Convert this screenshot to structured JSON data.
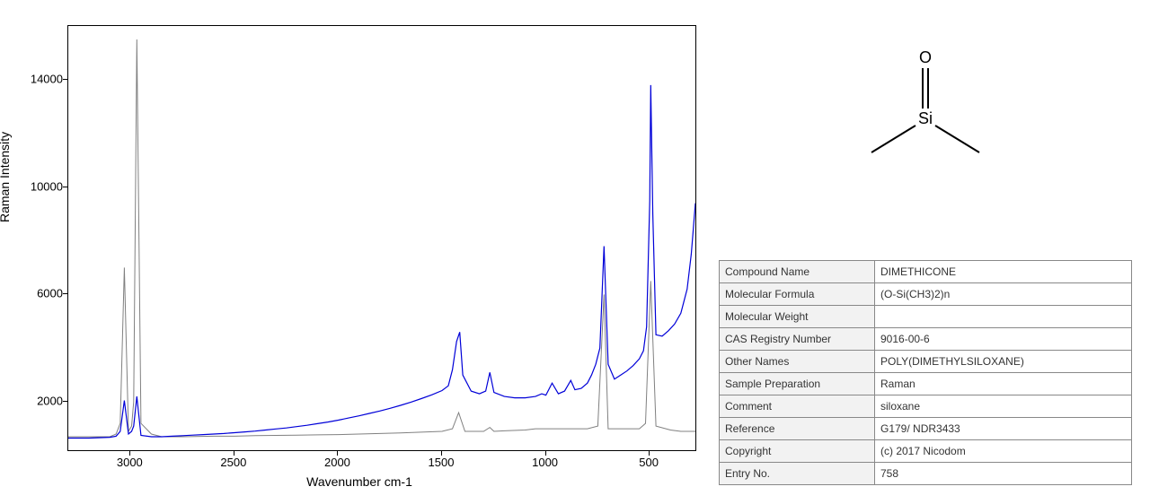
{
  "chart": {
    "type": "line-spectrum",
    "y_label": "Raman Intensity",
    "x_label": "Wavenumber cm-1",
    "x_range": [
      3300,
      280
    ],
    "y_range": [
      200,
      16000
    ],
    "x_ticks": [
      3000,
      2500,
      2000,
      1500,
      1000,
      500
    ],
    "y_ticks": [
      2000,
      6000,
      10000,
      14000
    ],
    "plot_bg": "#ffffff",
    "border_color": "#000000",
    "series": [
      {
        "name": "gray-spectrum",
        "color": "#808080",
        "line_width": 1.0,
        "points": [
          [
            3300,
            700
          ],
          [
            3200,
            700
          ],
          [
            3100,
            700
          ],
          [
            3070,
            800
          ],
          [
            3050,
            1200
          ],
          [
            3030,
            7000
          ],
          [
            3010,
            900
          ],
          [
            2995,
            1100
          ],
          [
            2985,
            2000
          ],
          [
            2970,
            15500
          ],
          [
            2950,
            1200
          ],
          [
            2900,
            800
          ],
          [
            2850,
            700
          ],
          [
            2750,
            700
          ],
          [
            2600,
            720
          ],
          [
            2500,
            720
          ],
          [
            2400,
            740
          ],
          [
            2300,
            750
          ],
          [
            2200,
            760
          ],
          [
            2100,
            770
          ],
          [
            2000,
            780
          ],
          [
            1900,
            800
          ],
          [
            1800,
            820
          ],
          [
            1700,
            840
          ],
          [
            1600,
            870
          ],
          [
            1500,
            900
          ],
          [
            1450,
            1000
          ],
          [
            1420,
            1600
          ],
          [
            1390,
            900
          ],
          [
            1300,
            900
          ],
          [
            1270,
            1050
          ],
          [
            1250,
            900
          ],
          [
            1200,
            920
          ],
          [
            1100,
            950
          ],
          [
            1050,
            1000
          ],
          [
            1000,
            1000
          ],
          [
            950,
            1000
          ],
          [
            900,
            1000
          ],
          [
            850,
            1000
          ],
          [
            800,
            1000
          ],
          [
            750,
            1100
          ],
          [
            720,
            6000
          ],
          [
            700,
            1000
          ],
          [
            650,
            1000
          ],
          [
            600,
            1000
          ],
          [
            550,
            1000
          ],
          [
            520,
            1200
          ],
          [
            495,
            6500
          ],
          [
            470,
            1100
          ],
          [
            400,
            950
          ],
          [
            350,
            900
          ],
          [
            300,
            900
          ],
          [
            280,
            900
          ]
        ]
      },
      {
        "name": "blue-spectrum",
        "color": "#0000d8",
        "line_width": 1.2,
        "points": [
          [
            3300,
            650
          ],
          [
            3200,
            650
          ],
          [
            3100,
            680
          ],
          [
            3070,
            720
          ],
          [
            3050,
            900
          ],
          [
            3030,
            2050
          ],
          [
            3010,
            800
          ],
          [
            2995,
            900
          ],
          [
            2985,
            1100
          ],
          [
            2970,
            2200
          ],
          [
            2950,
            750
          ],
          [
            2900,
            700
          ],
          [
            2850,
            700
          ],
          [
            2800,
            720
          ],
          [
            2750,
            740
          ],
          [
            2700,
            760
          ],
          [
            2650,
            780
          ],
          [
            2600,
            800
          ],
          [
            2550,
            820
          ],
          [
            2500,
            850
          ],
          [
            2450,
            880
          ],
          [
            2400,
            910
          ],
          [
            2350,
            950
          ],
          [
            2300,
            990
          ],
          [
            2250,
            1030
          ],
          [
            2200,
            1080
          ],
          [
            2150,
            1130
          ],
          [
            2100,
            1190
          ],
          [
            2050,
            1250
          ],
          [
            2000,
            1320
          ],
          [
            1950,
            1400
          ],
          [
            1900,
            1480
          ],
          [
            1850,
            1570
          ],
          [
            1800,
            1660
          ],
          [
            1750,
            1760
          ],
          [
            1700,
            1870
          ],
          [
            1650,
            1990
          ],
          [
            1600,
            2120
          ],
          [
            1550,
            2260
          ],
          [
            1500,
            2420
          ],
          [
            1470,
            2600
          ],
          [
            1450,
            3200
          ],
          [
            1430,
            4250
          ],
          [
            1415,
            4600
          ],
          [
            1400,
            3000
          ],
          [
            1360,
            2400
          ],
          [
            1320,
            2300
          ],
          [
            1290,
            2400
          ],
          [
            1270,
            3100
          ],
          [
            1250,
            2350
          ],
          [
            1200,
            2200
          ],
          [
            1150,
            2150
          ],
          [
            1100,
            2150
          ],
          [
            1050,
            2200
          ],
          [
            1020,
            2300
          ],
          [
            1000,
            2250
          ],
          [
            970,
            2700
          ],
          [
            940,
            2300
          ],
          [
            910,
            2400
          ],
          [
            880,
            2800
          ],
          [
            860,
            2450
          ],
          [
            830,
            2500
          ],
          [
            800,
            2700
          ],
          [
            780,
            3000
          ],
          [
            760,
            3400
          ],
          [
            740,
            4000
          ],
          [
            720,
            7800
          ],
          [
            700,
            3400
          ],
          [
            670,
            2850
          ],
          [
            640,
            3000
          ],
          [
            610,
            3150
          ],
          [
            580,
            3350
          ],
          [
            550,
            3600
          ],
          [
            530,
            3900
          ],
          [
            515,
            4800
          ],
          [
            500,
            9500
          ],
          [
            495,
            13800
          ],
          [
            485,
            9000
          ],
          [
            470,
            4500
          ],
          [
            440,
            4450
          ],
          [
            410,
            4650
          ],
          [
            380,
            4900
          ],
          [
            350,
            5300
          ],
          [
            320,
            6200
          ],
          [
            300,
            7500
          ],
          [
            280,
            9400
          ]
        ]
      }
    ]
  },
  "structure": {
    "atom_top": "O",
    "atom_center": "Si",
    "fontsize": 18,
    "line_width": 2,
    "color": "#000000"
  },
  "table": {
    "rows": [
      {
        "label": "Compound Name",
        "value": "DIMETHICONE"
      },
      {
        "label": "Molecular Formula",
        "value": "(O-Si(CH3)2)n"
      },
      {
        "label": "Molecular Weight",
        "value": ""
      },
      {
        "label": "CAS Registry Number",
        "value": "9016-00-6"
      },
      {
        "label": "Other Names",
        "value": "POLY(DIMETHYLSILOXANE)"
      },
      {
        "label": "Sample Preparation",
        "value": "Raman"
      },
      {
        "label": "Comment",
        "value": "siloxane"
      },
      {
        "label": "Reference",
        "value": "G179/ NDR3433"
      },
      {
        "label": "Copyright",
        "value": "(c) 2017 Nicodom"
      },
      {
        "label": "Entry No.",
        "value": "758"
      }
    ]
  }
}
